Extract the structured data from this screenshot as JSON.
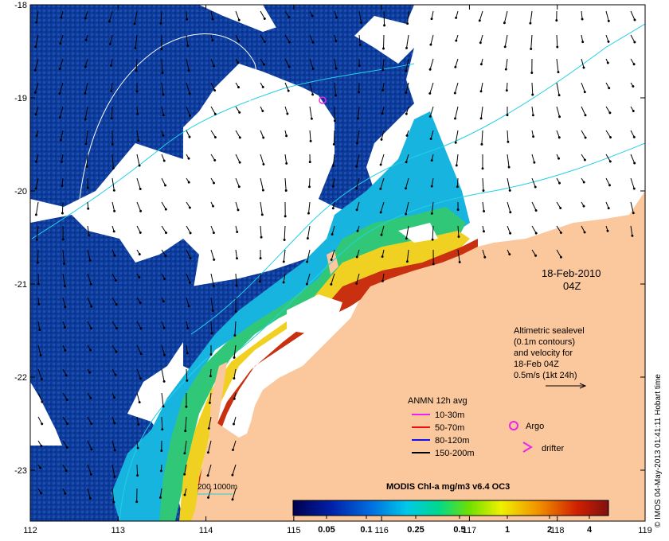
{
  "map": {
    "date_label": "18-Feb-2010",
    "time_label": "04Z",
    "credit": "© IMOS 04-May-2013 01:41:11 Hobart time",
    "x_ticks": [
      "112",
      "113",
      "114",
      "115",
      "116",
      "117",
      "118",
      "119"
    ],
    "y_ticks": [
      "-18",
      "-19",
      "-20",
      "-21",
      "-22",
      "-23"
    ],
    "altimetry_note": {
      "line1": "Altimetric sealevel",
      "line2": "(0.1m contours)",
      "line3": "and velocity for",
      "line4": "18-Feb 04Z",
      "scale_label": "0.5m/s (1kt 24h)"
    },
    "anmn_legend": {
      "title": "ANMN 12h avg",
      "items": [
        {
          "label": "10-30m",
          "color": "#ee22ee"
        },
        {
          "label": "50-70m",
          "color": "#ee1111"
        },
        {
          "label": "80-120m",
          "color": "#1111ee"
        },
        {
          "label": "150-200m",
          "color": "#000000"
        }
      ]
    },
    "argo_label": "Argo",
    "drifter_label": "drifter",
    "isobath_label": "200  1000m",
    "colorbar": {
      "title": "MODIS Chl-a mg/m3 v6.4 OC3",
      "tick_labels": [
        "0.05",
        "0.1",
        "0.25",
        "0.5",
        "1",
        "2",
        "4"
      ]
    },
    "colors": {
      "land": "#fbc79d",
      "ocean_deep": "#0d3b9c",
      "argo": "#ee22ee",
      "contour": "#22d0e6"
    }
  }
}
